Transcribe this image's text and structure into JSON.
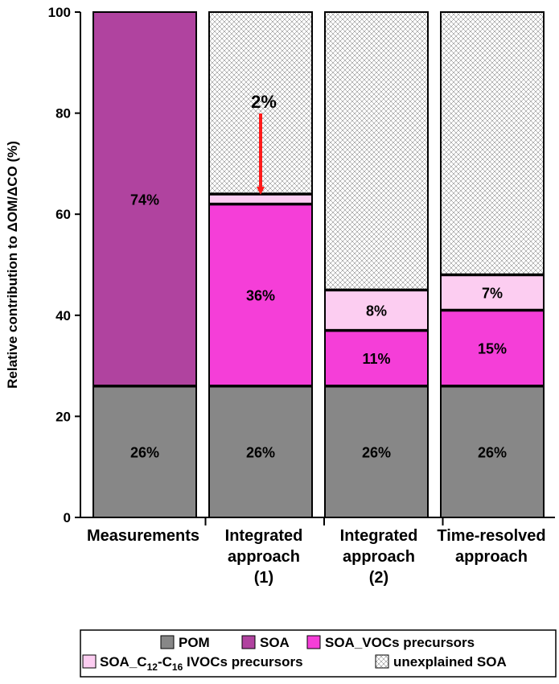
{
  "chart_data": {
    "type": "bar",
    "stacked": true,
    "ylabel": "Relative contribution to ΔOM/ΔCO (%)",
    "ylim": [
      0,
      100
    ],
    "yticks": [
      0,
      20,
      40,
      60,
      80,
      100
    ],
    "categories": [
      [
        "Measurements"
      ],
      [
        "Integrated",
        "approach",
        "(1)"
      ],
      [
        "Integrated",
        "approach",
        "(2)"
      ],
      [
        "Time-resolved",
        "approach"
      ]
    ],
    "series": [
      {
        "name": "POM",
        "key": "pom",
        "color": "#878787",
        "values": [
          26,
          26,
          26,
          26
        ],
        "labels": [
          "26%",
          "26%",
          "26%",
          "26%"
        ]
      },
      {
        "name": "SOA",
        "key": "soa",
        "color": "#b0439f",
        "values": [
          74,
          0,
          0,
          0
        ],
        "labels": [
          "74%",
          "",
          "",
          ""
        ]
      },
      {
        "name": "SOA_VOCs precursors",
        "key": "voc",
        "color": "#f53ed8",
        "values": [
          0,
          36,
          11,
          15
        ],
        "labels": [
          "",
          "36%",
          "11%",
          "15%"
        ]
      },
      {
        "name": "SOA_C12-C16 IVOCs precursors",
        "key": "ivoc",
        "color": "#fccdf1",
        "values": [
          0,
          2,
          8,
          7
        ],
        "labels": [
          "",
          "",
          "8%",
          "7%"
        ]
      },
      {
        "name": "unexplained SOA",
        "key": "unexpl",
        "color": "#ffffff",
        "values": [
          0,
          36,
          55,
          52
        ],
        "labels": [
          "",
          "",
          "",
          ""
        ]
      }
    ],
    "annotations": [
      {
        "text": "2%",
        "category_index": 1,
        "series": "SOA_C12-C16 IVOCs precursors",
        "arrow_color": "#ff1a1a"
      }
    ],
    "legend": {
      "placement": "bottom",
      "rows": [
        [
          {
            "series": "pom",
            "text": "POM"
          },
          {
            "series": "soa",
            "text": "SOA"
          },
          {
            "series": "voc",
            "text": "SOA_VOCs precursors"
          }
        ],
        [
          {
            "series": "ivoc",
            "parts": [
              "SOA_C",
              "12",
              "-C",
              "16",
              " IVOCs precursors"
            ]
          },
          {
            "series": "unexpl",
            "text": "unexplained SOA"
          }
        ]
      ]
    }
  }
}
